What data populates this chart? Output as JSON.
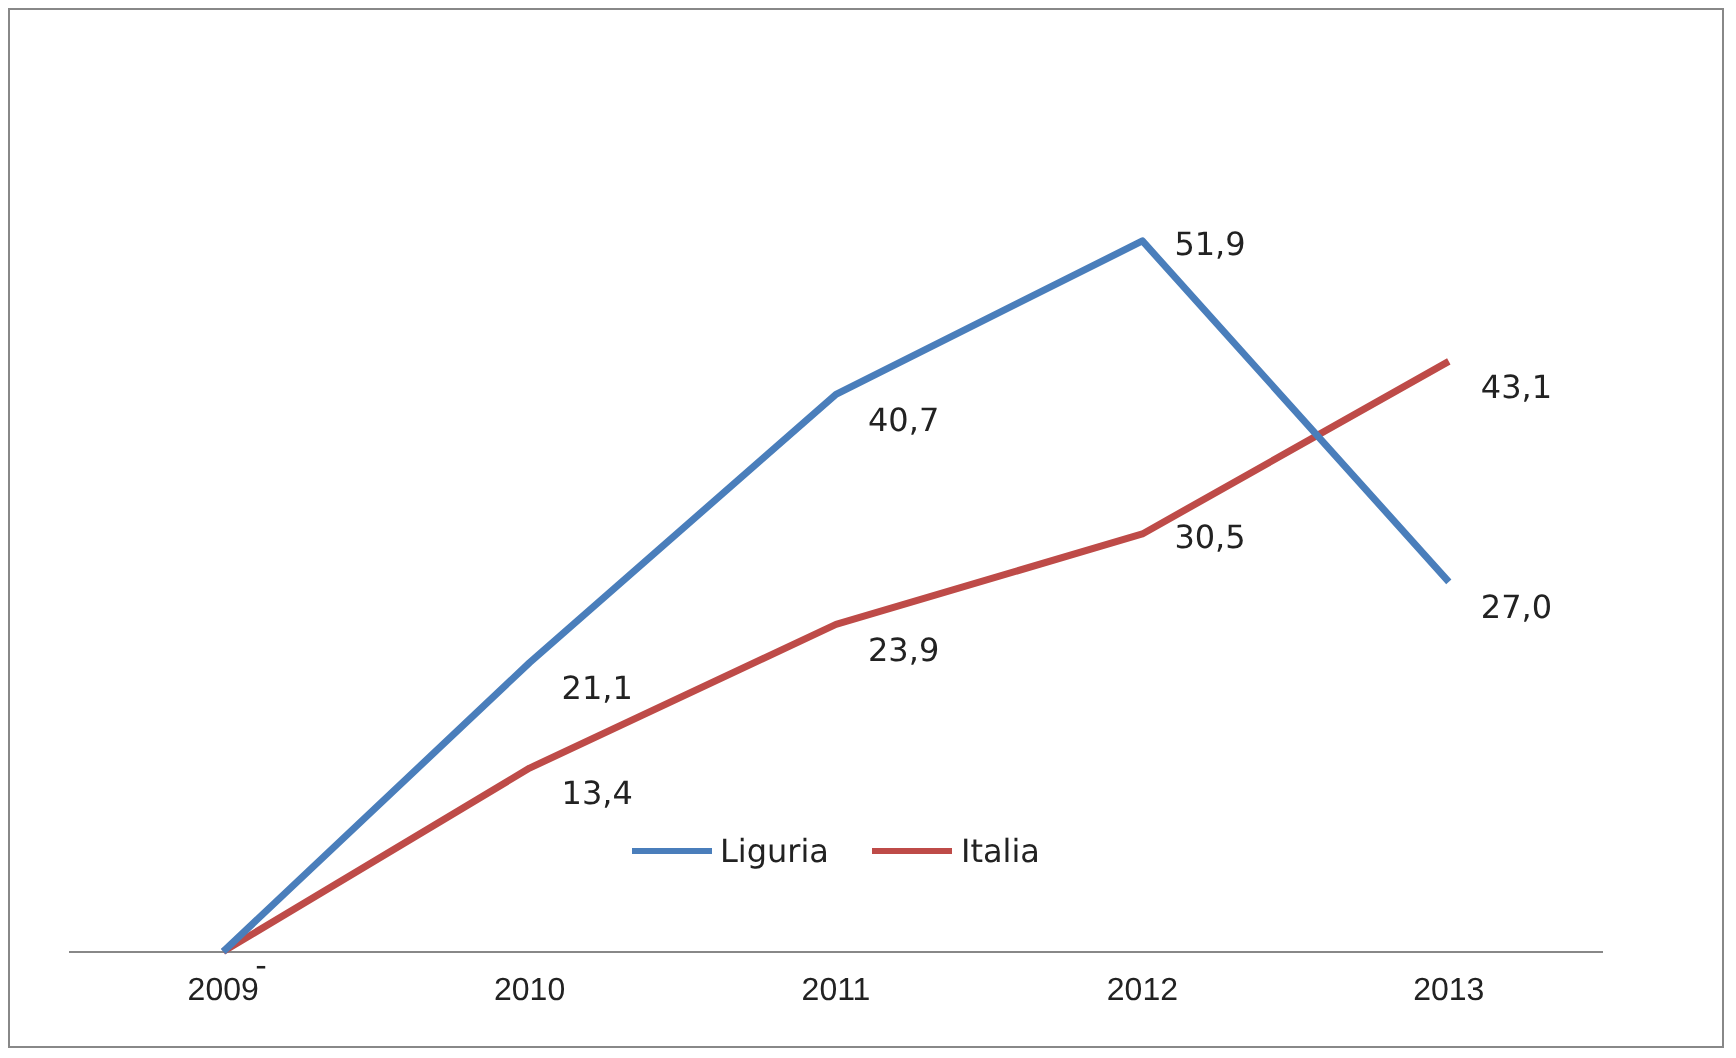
{
  "chart_data": {
    "type": "line",
    "categories": [
      "2009",
      "2010",
      "2011",
      "2012",
      "2013"
    ],
    "series": [
      {
        "name": "Liguria",
        "color": "#4a7ebb",
        "values": [
          0,
          21.1,
          40.7,
          51.9,
          27.0
        ],
        "value_labels": [
          "-",
          "21,1",
          "40,7",
          "51,9",
          "27,0"
        ]
      },
      {
        "name": "Italia",
        "color": "#be4b48",
        "values": [
          0,
          13.4,
          23.9,
          30.5,
          43.1
        ],
        "value_labels": [
          null,
          "13,4",
          "23,9",
          "30,5",
          "43,1"
        ]
      }
    ],
    "legend": "bottom",
    "grid": false,
    "marker": "none",
    "line_style": "solid"
  }
}
